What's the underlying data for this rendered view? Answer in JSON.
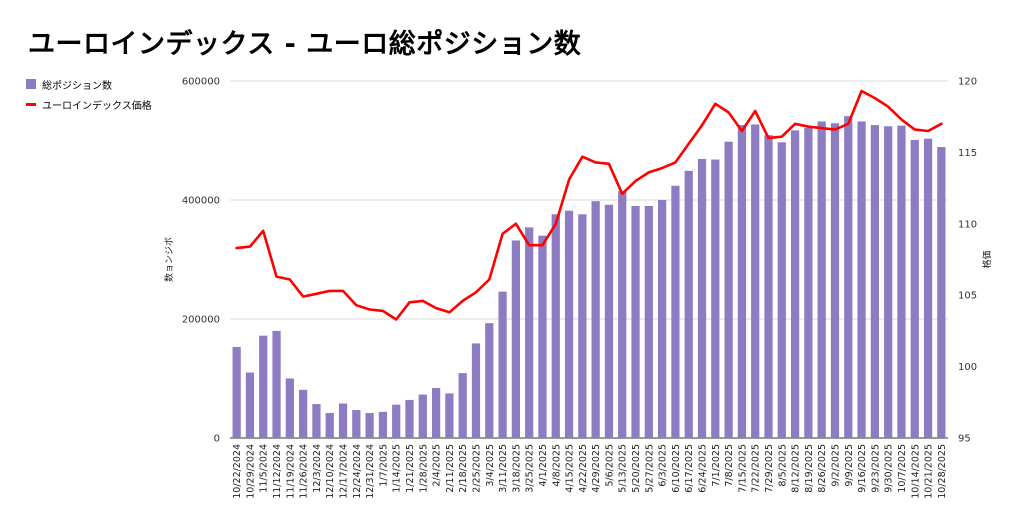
{
  "title": "ユーロインデックス - ユーロ総ポジション数",
  "legend": {
    "bar_label": "総ポジション数",
    "line_label": "ユーロインデックス価格",
    "bar_color": "#8e7cc3",
    "line_color": "#ff0000"
  },
  "chart_data": {
    "type": "bar",
    "title": "ユーロインデックス - ユーロ総ポジション数",
    "ylabel": "数ョンジボ",
    "y2label": "格価",
    "ylim": [
      0,
      600000
    ],
    "y2lim": [
      95,
      120
    ],
    "yticks": [
      0,
      200000,
      400000,
      600000
    ],
    "y2ticks": [
      95,
      100,
      105,
      110,
      115,
      120
    ],
    "legend_position": "top-left",
    "grid": true,
    "categories": [
      "10/22/2024",
      "10/29/2024",
      "11/5/2024",
      "11/12/2024",
      "11/19/2024",
      "11/26/2024",
      "12/3/2024",
      "12/10/2024",
      "12/17/2024",
      "12/24/2024",
      "12/31/2024",
      "1/7/2025",
      "1/14/2025",
      "1/21/2025",
      "1/28/2025",
      "2/4/2025",
      "2/11/2025",
      "2/18/2025",
      "2/25/2025",
      "3/4/2025",
      "3/11/2025",
      "3/18/2025",
      "3/25/2025",
      "4/1/2025",
      "4/8/2025",
      "4/15/2025",
      "4/22/2025",
      "4/29/2025",
      "5/6/2025",
      "5/13/2025",
      "5/20/2025",
      "5/27/2025",
      "6/3/2025",
      "6/10/2025",
      "6/17/2025",
      "6/24/2025",
      "7/1/2025",
      "7/8/2025",
      "7/15/2025",
      "7/22/2025",
      "7/29/2025",
      "8/5/2025",
      "8/12/2025",
      "8/19/2025",
      "8/26/2025",
      "9/2/2025",
      "9/9/2025",
      "9/16/2025",
      "9/23/2025",
      "9/30/2025",
      "10/7/2025",
      "10/14/2025",
      "10/21/2025",
      "10/28/2025"
    ],
    "xtick_labels": [
      "10/22/2024",
      "10/29/2024",
      "11/5/2024",
      "11/12/2024",
      "11/19/2024",
      "11/26/2024",
      "12/3/2024",
      "12/10/2024",
      "12/17/2024",
      "12/24/2024",
      "12/31/2024",
      "1/7/2025",
      "1/14/2025",
      "1/21/2025",
      "1/28/2025",
      "2/4/2025",
      "2/11/2025",
      "2/18/2025",
      "2/25/2025",
      "3/4/2025",
      "3/11/2025",
      "3/18/2025",
      "3/25/2025",
      "4/1/2025",
      "4/8/2025",
      "4/15/2025",
      "4/22/2025",
      "4/29/2025",
      "5/6/2025",
      "5/13/2025",
      "5/20/2025",
      "5/27/2025",
      "6/3/2025",
      "6/10/2025",
      "6/17/2025",
      "6/24/2025",
      "7/1/2025",
      "7/8/2025",
      "7/15/2025",
      "7/22/2025",
      "7/29/2025",
      "8/5/2025",
      "8/12/2025",
      "8/19/2025",
      "8/26/2025",
      "9/2/2025",
      "9/9/2025",
      "9/16/2025",
      "9/23/2025",
      "9/30/2025",
      "10/7/2025",
      "10/14/2025",
      "10/21/2025",
      "10/28/2025"
    ],
    "series": [
      {
        "name": "総ポジション数",
        "type": "bar",
        "axis": "left",
        "values": [
          153000,
          110000,
          172000,
          180000,
          100000,
          81000,
          57000,
          42000,
          58000,
          47000,
          42000,
          44000,
          56000,
          64000,
          73000,
          84000,
          75000,
          109000,
          159000,
          193000,
          246000,
          332000,
          354000,
          340000,
          376000,
          382000,
          376000,
          398000,
          392000,
          415000,
          390000,
          390000,
          400000,
          424000,
          449000,
          469000,
          468000,
          498000,
          526000,
          527000,
          509000,
          497000,
          517000,
          521000,
          532000,
          529000,
          541000,
          532000,
          526000,
          524000,
          525000,
          501000,
          503000,
          489000
        ]
      },
      {
        "name": "ユーロインデックス価格",
        "type": "line",
        "axis": "right",
        "values": [
          108.3,
          108.4,
          109.5,
          106.3,
          106.1,
          104.9,
          105.1,
          105.3,
          105.3,
          104.3,
          104.0,
          103.9,
          103.3,
          104.5,
          104.6,
          104.1,
          103.8,
          104.6,
          105.2,
          106.1,
          109.3,
          110.0,
          108.5,
          108.5,
          110.0,
          113.1,
          114.7,
          114.3,
          114.2,
          112.1,
          113.0,
          113.6,
          113.9,
          114.3,
          115.6,
          116.9,
          118.4,
          117.8,
          116.5,
          117.9,
          116.0,
          116.1,
          117.0,
          116.8,
          116.7,
          116.6,
          117.0,
          119.3,
          118.8,
          118.2,
          117.3,
          116.6,
          116.5,
          117.0
        ]
      }
    ]
  }
}
